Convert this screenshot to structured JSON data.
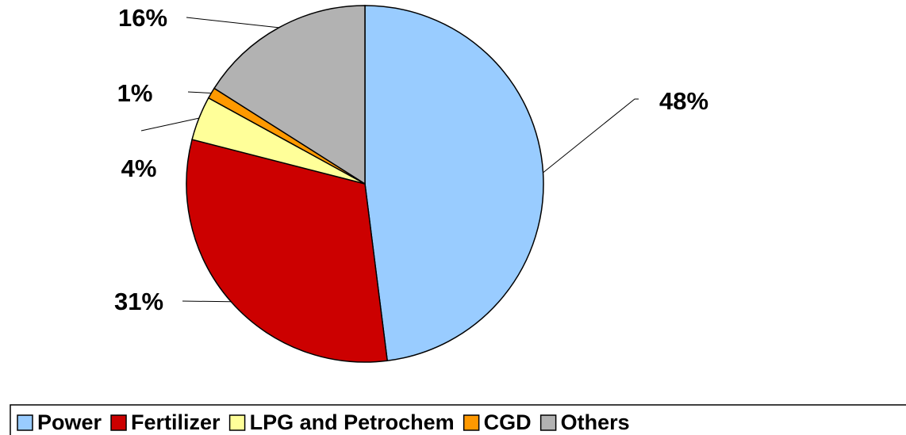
{
  "chart_data": {
    "type": "pie",
    "categories": [
      "Power",
      "Fertilizer",
      "LPG and Petrochem",
      "CGD",
      "Others"
    ],
    "values": [
      48,
      31,
      4,
      1,
      16
    ],
    "value_labels": [
      "48%",
      "31%",
      "4%",
      "1%",
      "16%"
    ],
    "colors": [
      "#99ccff",
      "#cc0000",
      "#ffff99",
      "#ff9900",
      "#b2b2b2"
    ],
    "legend": "bottom"
  }
}
